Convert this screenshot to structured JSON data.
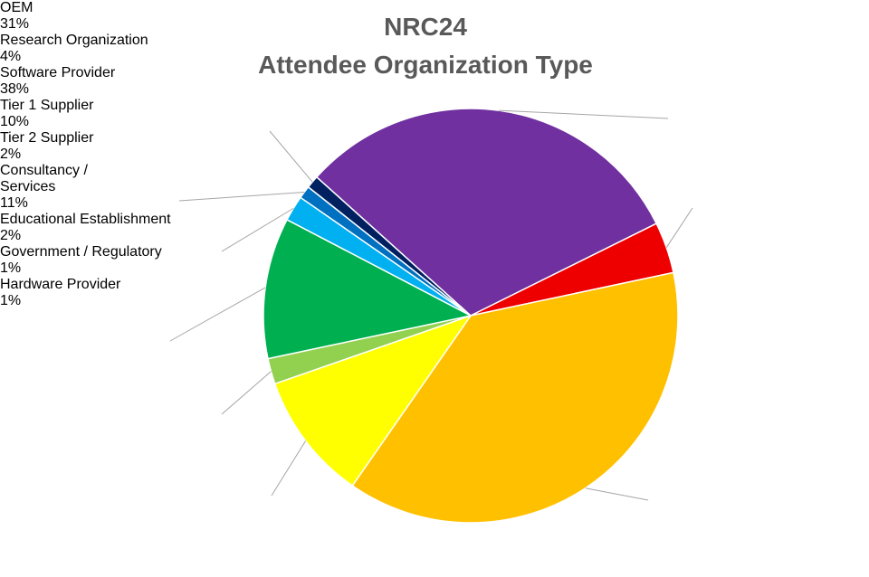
{
  "chart_data": {
    "type": "pie",
    "title": "NRC24",
    "subtitle": "Attendee Organization Type",
    "start_angle": 312,
    "categories": [
      "OEM",
      "Research Organization",
      "Software Provider",
      "Tier 1 Supplier",
      "Tier 2 Supplier",
      "Consultancy / Services",
      "Educational Establishment",
      "Government / Regulatory",
      "Hardware Provider"
    ],
    "values": [
      31,
      4,
      38,
      10,
      2,
      11,
      2,
      1,
      1
    ],
    "value_labels": [
      "31%",
      "4%",
      "38%",
      "10%",
      "2%",
      "11%",
      "2%",
      "1%",
      "1%"
    ],
    "colors": [
      "#7030a0",
      "#ee0000",
      "#ffc000",
      "#ffff00",
      "#92d050",
      "#00b050",
      "#00b0f0",
      "#0070c0",
      "#002060"
    ]
  }
}
